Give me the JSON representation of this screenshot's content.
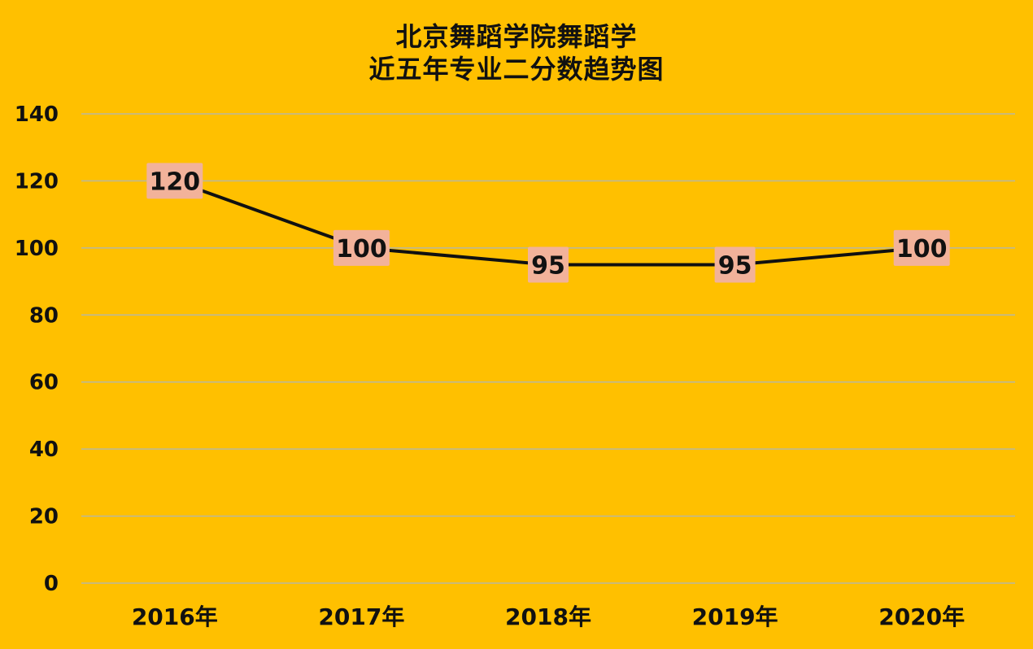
{
  "chart_data": {
    "type": "line",
    "title_line1": "北京舞蹈学院舞蹈学",
    "title_line2": "近五年专业二分数趋势图",
    "categories": [
      "2016年",
      "2017年",
      "2018年",
      "2019年",
      "2020年"
    ],
    "values": [
      120,
      100,
      95,
      95,
      100
    ],
    "data_labels": [
      "120",
      "100",
      "95",
      "95",
      "100"
    ],
    "y_ticks": [
      "0",
      "20",
      "40",
      "60",
      "80",
      "100",
      "120",
      "140"
    ],
    "ylim": [
      0,
      140
    ],
    "grid": true,
    "legend": "none",
    "xlabel": "",
    "ylabel": "",
    "colors": {
      "background": "#FFC000",
      "line": "#111111",
      "gridline": "#B8B8A0",
      "label_box": "#F2B29A"
    }
  }
}
